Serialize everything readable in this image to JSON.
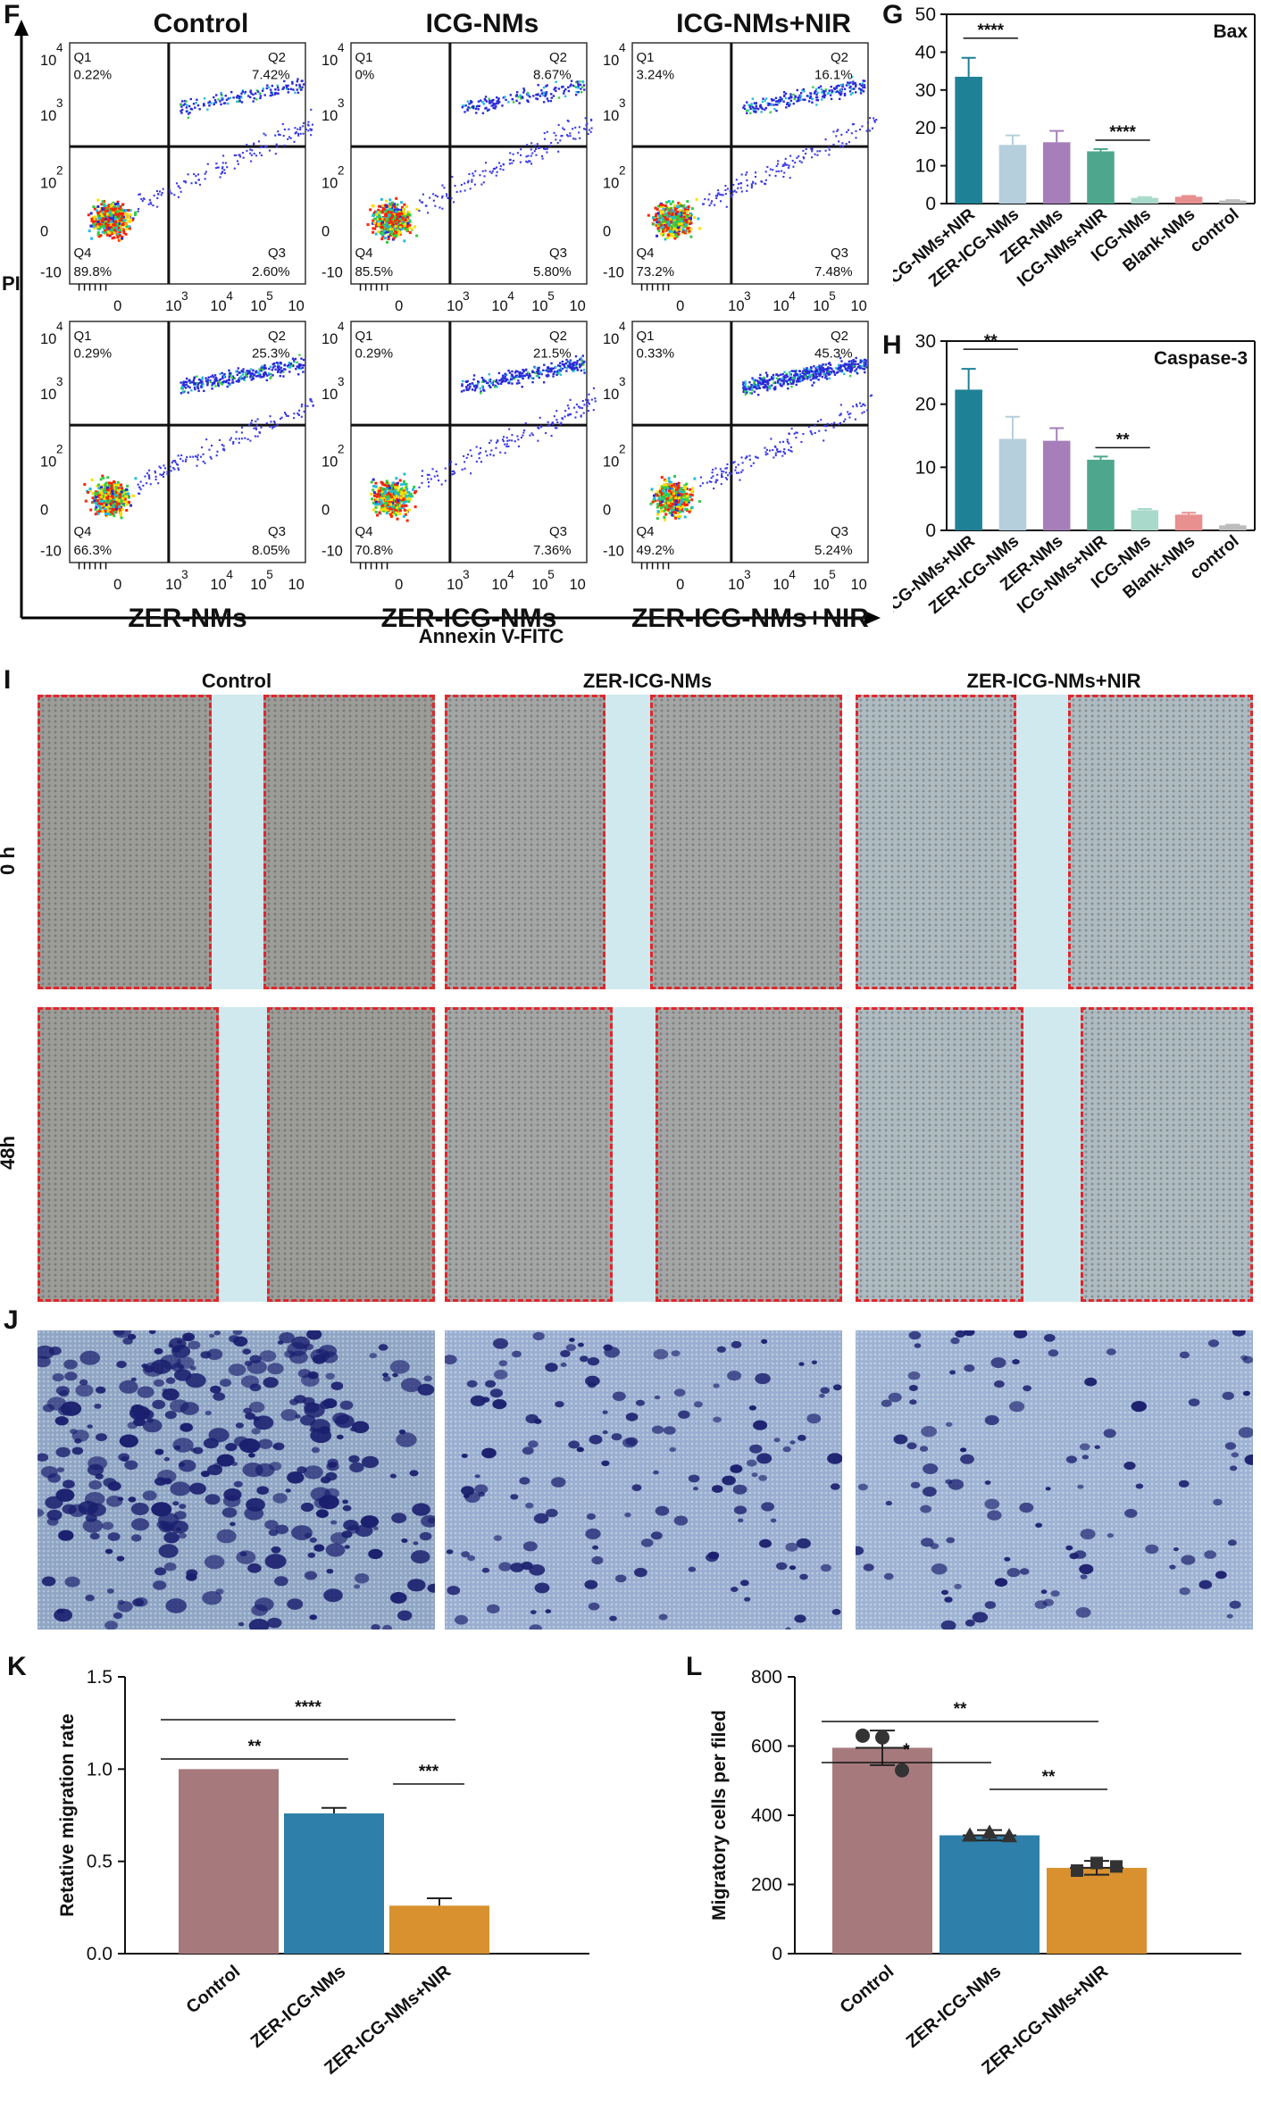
{
  "panels": {
    "F": "F",
    "G": "G",
    "H": "H",
    "I": "I",
    "J": "J",
    "K": "K",
    "L": "L"
  },
  "flow": {
    "y_axis_label": "PI",
    "x_axis_label": "Annexin V-FITC",
    "quadrant_labels": [
      "Q1",
      "Q2",
      "Q3",
      "Q4"
    ],
    "tick_labels_x": [
      "0",
      "10",
      "10",
      "10",
      "10"
    ],
    "tick_exp_x": [
      "",
      "3",
      "4",
      "5",
      ""
    ],
    "tick_labels_y": [
      "10",
      "10",
      "10",
      "0",
      "-10"
    ],
    "tick_exp_y": [
      "4",
      "3",
      "2",
      "",
      ""
    ],
    "plots": [
      {
        "title": "Control",
        "q1": "0.22%",
        "q2": "7.42%",
        "q3": "2.60%",
        "q4": "89.8%",
        "bottom_title": ""
      },
      {
        "title": "ICG-NMs",
        "q1": "0%",
        "q2": "8.67%",
        "q3": "5.80%",
        "q4": "85.5%",
        "bottom_title": ""
      },
      {
        "title": "ICG-NMs+NIR",
        "q1": "3.24%",
        "q2": "16.1%",
        "q3": "7.48%",
        "q4": "73.2%",
        "bottom_title": ""
      },
      {
        "title": "",
        "q1": "0.29%",
        "q2": "25.3%",
        "q3": "8.05%",
        "q4": "66.3%",
        "bottom_title": "ZER-NMs"
      },
      {
        "title": "",
        "q1": "0.29%",
        "q2": "21.5%",
        "q3": "7.36%",
        "q4": "70.8%",
        "bottom_title": "ZER-ICG-NMs"
      },
      {
        "title": "",
        "q1": "0.33%",
        "q2": "45.3%",
        "q3": "5.24%",
        "q4": "49.2%",
        "bottom_title": "ZER-ICG-NMs+NIR"
      }
    ]
  },
  "chart_data": [
    {
      "type": "bar",
      "title": "Bax",
      "categories": [
        "ZER-ICG-NMs+NIR",
        "ZER-ICG-NMs",
        "ZER-NMs",
        "ICG-NMs+NIR",
        "ICG-NMs",
        "Blank-NMs",
        "control"
      ],
      "values": [
        33.5,
        15.5,
        16.2,
        13.8,
        1.5,
        1.8,
        0.8
      ],
      "errors": [
        5,
        2.5,
        3,
        0.6,
        0.2,
        0.2,
        0.1
      ],
      "colors": [
        "#1f8196",
        "#b5cfdc",
        "#a67fba",
        "#4ea78c",
        "#a9d9cb",
        "#e88f8f",
        "#bcbcbc"
      ],
      "ylim": [
        0,
        50
      ],
      "yticks": [
        "0",
        "10",
        "20",
        "30",
        "40",
        "50"
      ],
      "significance": [
        {
          "label": "****",
          "from": 0,
          "to": 1
        },
        {
          "label": "****",
          "from": 3,
          "to": 4
        }
      ]
    },
    {
      "type": "bar",
      "title": "Caspase-3",
      "categories": [
        "ZER-ICG-NMs+NIR",
        "ZER-ICG-NMs",
        "ZER-NMs",
        "ICG-NMs+NIR",
        "ICG-NMs",
        "Blank-NMs",
        "control"
      ],
      "values": [
        22.3,
        14.5,
        14.2,
        11.2,
        3.2,
        2.5,
        0.8
      ],
      "errors": [
        3.3,
        3.5,
        2,
        0.5,
        0.2,
        0.3,
        0.1
      ],
      "colors": [
        "#1f8196",
        "#b5cfdc",
        "#a67fba",
        "#4ea78c",
        "#a9d9cb",
        "#e88f8f",
        "#bcbcbc"
      ],
      "ylim": [
        0,
        30
      ],
      "yticks": [
        "0",
        "10",
        "20",
        "30"
      ],
      "significance": [
        {
          "label": "**",
          "from": 0,
          "to": 1
        },
        {
          "label": "**",
          "from": 3,
          "to": 4
        }
      ]
    },
    {
      "type": "bar",
      "title": "",
      "ylabel": "Retative migration rate",
      "categories": [
        "Control",
        "ZER-ICG-NMs",
        "ZER-ICG-NMs+NIR"
      ],
      "values": [
        1.0,
        0.76,
        0.26
      ],
      "errors": [
        0,
        0.03,
        0.04
      ],
      "colors": [
        "#a67a7d",
        "#2e7fa9",
        "#d8912e"
      ],
      "ylim": [
        0,
        1.5
      ],
      "yticks": [
        "0.0",
        "0.5",
        "1.0",
        "1.5"
      ],
      "significance": [
        {
          "label": "**",
          "from": 0,
          "to": 1
        },
        {
          "label": "****",
          "from": 0,
          "to": 2
        },
        {
          "label": "***",
          "from": 1,
          "to": 2
        }
      ]
    },
    {
      "type": "bar",
      "title": "",
      "ylabel": "Migratory cells per filed",
      "categories": [
        "Control",
        "ZER-ICG-NMs",
        "ZER-ICG-NMs+NIR"
      ],
      "values": [
        595,
        342,
        248
      ],
      "errors": [
        50,
        15,
        20
      ],
      "points": [
        [
          630,
          625,
          530
        ],
        [
          342,
          350,
          340
        ],
        [
          240,
          262,
          252
        ]
      ],
      "markers": [
        "circle",
        "triangle",
        "square"
      ],
      "colors": [
        "#a67a7d",
        "#2e7fa9",
        "#d8912e"
      ],
      "ylim": [
        0,
        800
      ],
      "yticks": [
        "0",
        "200",
        "400",
        "600",
        "800"
      ],
      "significance": [
        {
          "label": "*",
          "from": 0,
          "to": 1
        },
        {
          "label": "**",
          "from": 0,
          "to": 2
        },
        {
          "label": "**",
          "from": 1,
          "to": 2
        }
      ]
    }
  ],
  "scratch": {
    "columns": [
      "Control",
      "ZER-ICG-NMs",
      "ZER-ICG-NMs+NIR"
    ],
    "rows": [
      "0 h",
      "48h"
    ]
  }
}
